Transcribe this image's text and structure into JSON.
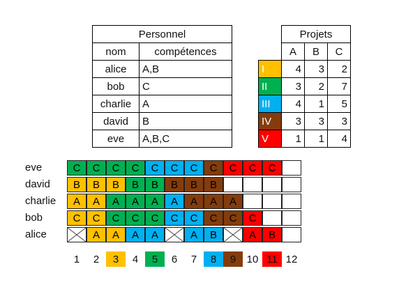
{
  "personnel": {
    "title": "Personnel",
    "headers": [
      "nom",
      "compétences"
    ],
    "rows": [
      {
        "name": "alice",
        "skills": "A,B"
      },
      {
        "name": "bob",
        "skills": "C"
      },
      {
        "name": "charlie",
        "skills": "A"
      },
      {
        "name": "david",
        "skills": "B"
      },
      {
        "name": "eve",
        "skills": "A,B,C"
      }
    ]
  },
  "projets": {
    "title": "Projets",
    "columns": [
      "A",
      "B",
      "C"
    ],
    "rows": [
      {
        "label": "I",
        "color": "#FFC000",
        "values": [
          "4",
          "3",
          "2"
        ]
      },
      {
        "label": "II",
        "color": "#00B050",
        "values": [
          "3",
          "2",
          "7"
        ]
      },
      {
        "label": "III",
        "color": "#00B0F0",
        "values": [
          "4",
          "1",
          "5"
        ]
      },
      {
        "label": "IV",
        "color": "#843C0C",
        "values": [
          "3",
          "3",
          "3"
        ]
      },
      {
        "label": "V",
        "color": "#FF0000",
        "values": [
          "1",
          "1",
          "4"
        ]
      }
    ]
  },
  "colors": {
    "I": "#FFC000",
    "II": "#00B050",
    "III": "#00B0F0",
    "IV": "#843C0C",
    "V": "#FF0000"
  },
  "schedule": {
    "time_slots": [
      "1",
      "2",
      "3",
      "4",
      "5",
      "6",
      "7",
      "8",
      "9",
      "10",
      "11",
      "12"
    ],
    "highlighted_slots": {
      "3": "I",
      "5": "II",
      "8": "III",
      "9": "IV",
      "11": "V"
    },
    "rows": [
      {
        "name": "eve",
        "cells": [
          [
            "C",
            "II"
          ],
          [
            "C",
            "II"
          ],
          [
            "C",
            "II"
          ],
          [
            "C",
            "II"
          ],
          [
            "C",
            "III"
          ],
          [
            "C",
            "III"
          ],
          [
            "C",
            "III"
          ],
          [
            "C",
            "IV"
          ],
          [
            "C",
            "V"
          ],
          [
            "C",
            "V"
          ],
          [
            "C",
            "V"
          ],
          null
        ]
      },
      {
        "name": "david",
        "cells": [
          [
            "B",
            "I"
          ],
          [
            "B",
            "I"
          ],
          [
            "B",
            "I"
          ],
          [
            "B",
            "II"
          ],
          [
            "B",
            "II"
          ],
          [
            "B",
            "IV"
          ],
          [
            "B",
            "IV"
          ],
          [
            "B",
            "IV"
          ],
          null,
          null,
          null,
          null
        ]
      },
      {
        "name": "charlie",
        "cells": [
          [
            "A",
            "I"
          ],
          [
            "A",
            "I"
          ],
          [
            "A",
            "II"
          ],
          [
            "A",
            "II"
          ],
          [
            "A",
            "II"
          ],
          [
            "A",
            "III"
          ],
          [
            "A",
            "IV"
          ],
          [
            "A",
            "IV"
          ],
          [
            "A",
            "IV"
          ],
          null,
          null,
          null
        ]
      },
      {
        "name": "bob",
        "cells": [
          [
            "C",
            "I"
          ],
          [
            "C",
            "I"
          ],
          [
            "C",
            "II"
          ],
          [
            "C",
            "II"
          ],
          [
            "C",
            "II"
          ],
          [
            "C",
            "III"
          ],
          [
            "C",
            "III"
          ],
          [
            "C",
            "IV"
          ],
          [
            "C",
            "IV"
          ],
          [
            "C",
            "V"
          ],
          null,
          null
        ]
      },
      {
        "name": "alice",
        "cells": [
          [
            "X",
            null
          ],
          [
            "A",
            "I"
          ],
          [
            "A",
            "I"
          ],
          [
            "A",
            "III"
          ],
          [
            "A",
            "III"
          ],
          [
            "X",
            null
          ],
          [
            "A",
            "III"
          ],
          [
            "B",
            "III"
          ],
          [
            "X",
            null
          ],
          [
            "A",
            "V"
          ],
          [
            "B",
            "V"
          ],
          null
        ]
      }
    ]
  }
}
